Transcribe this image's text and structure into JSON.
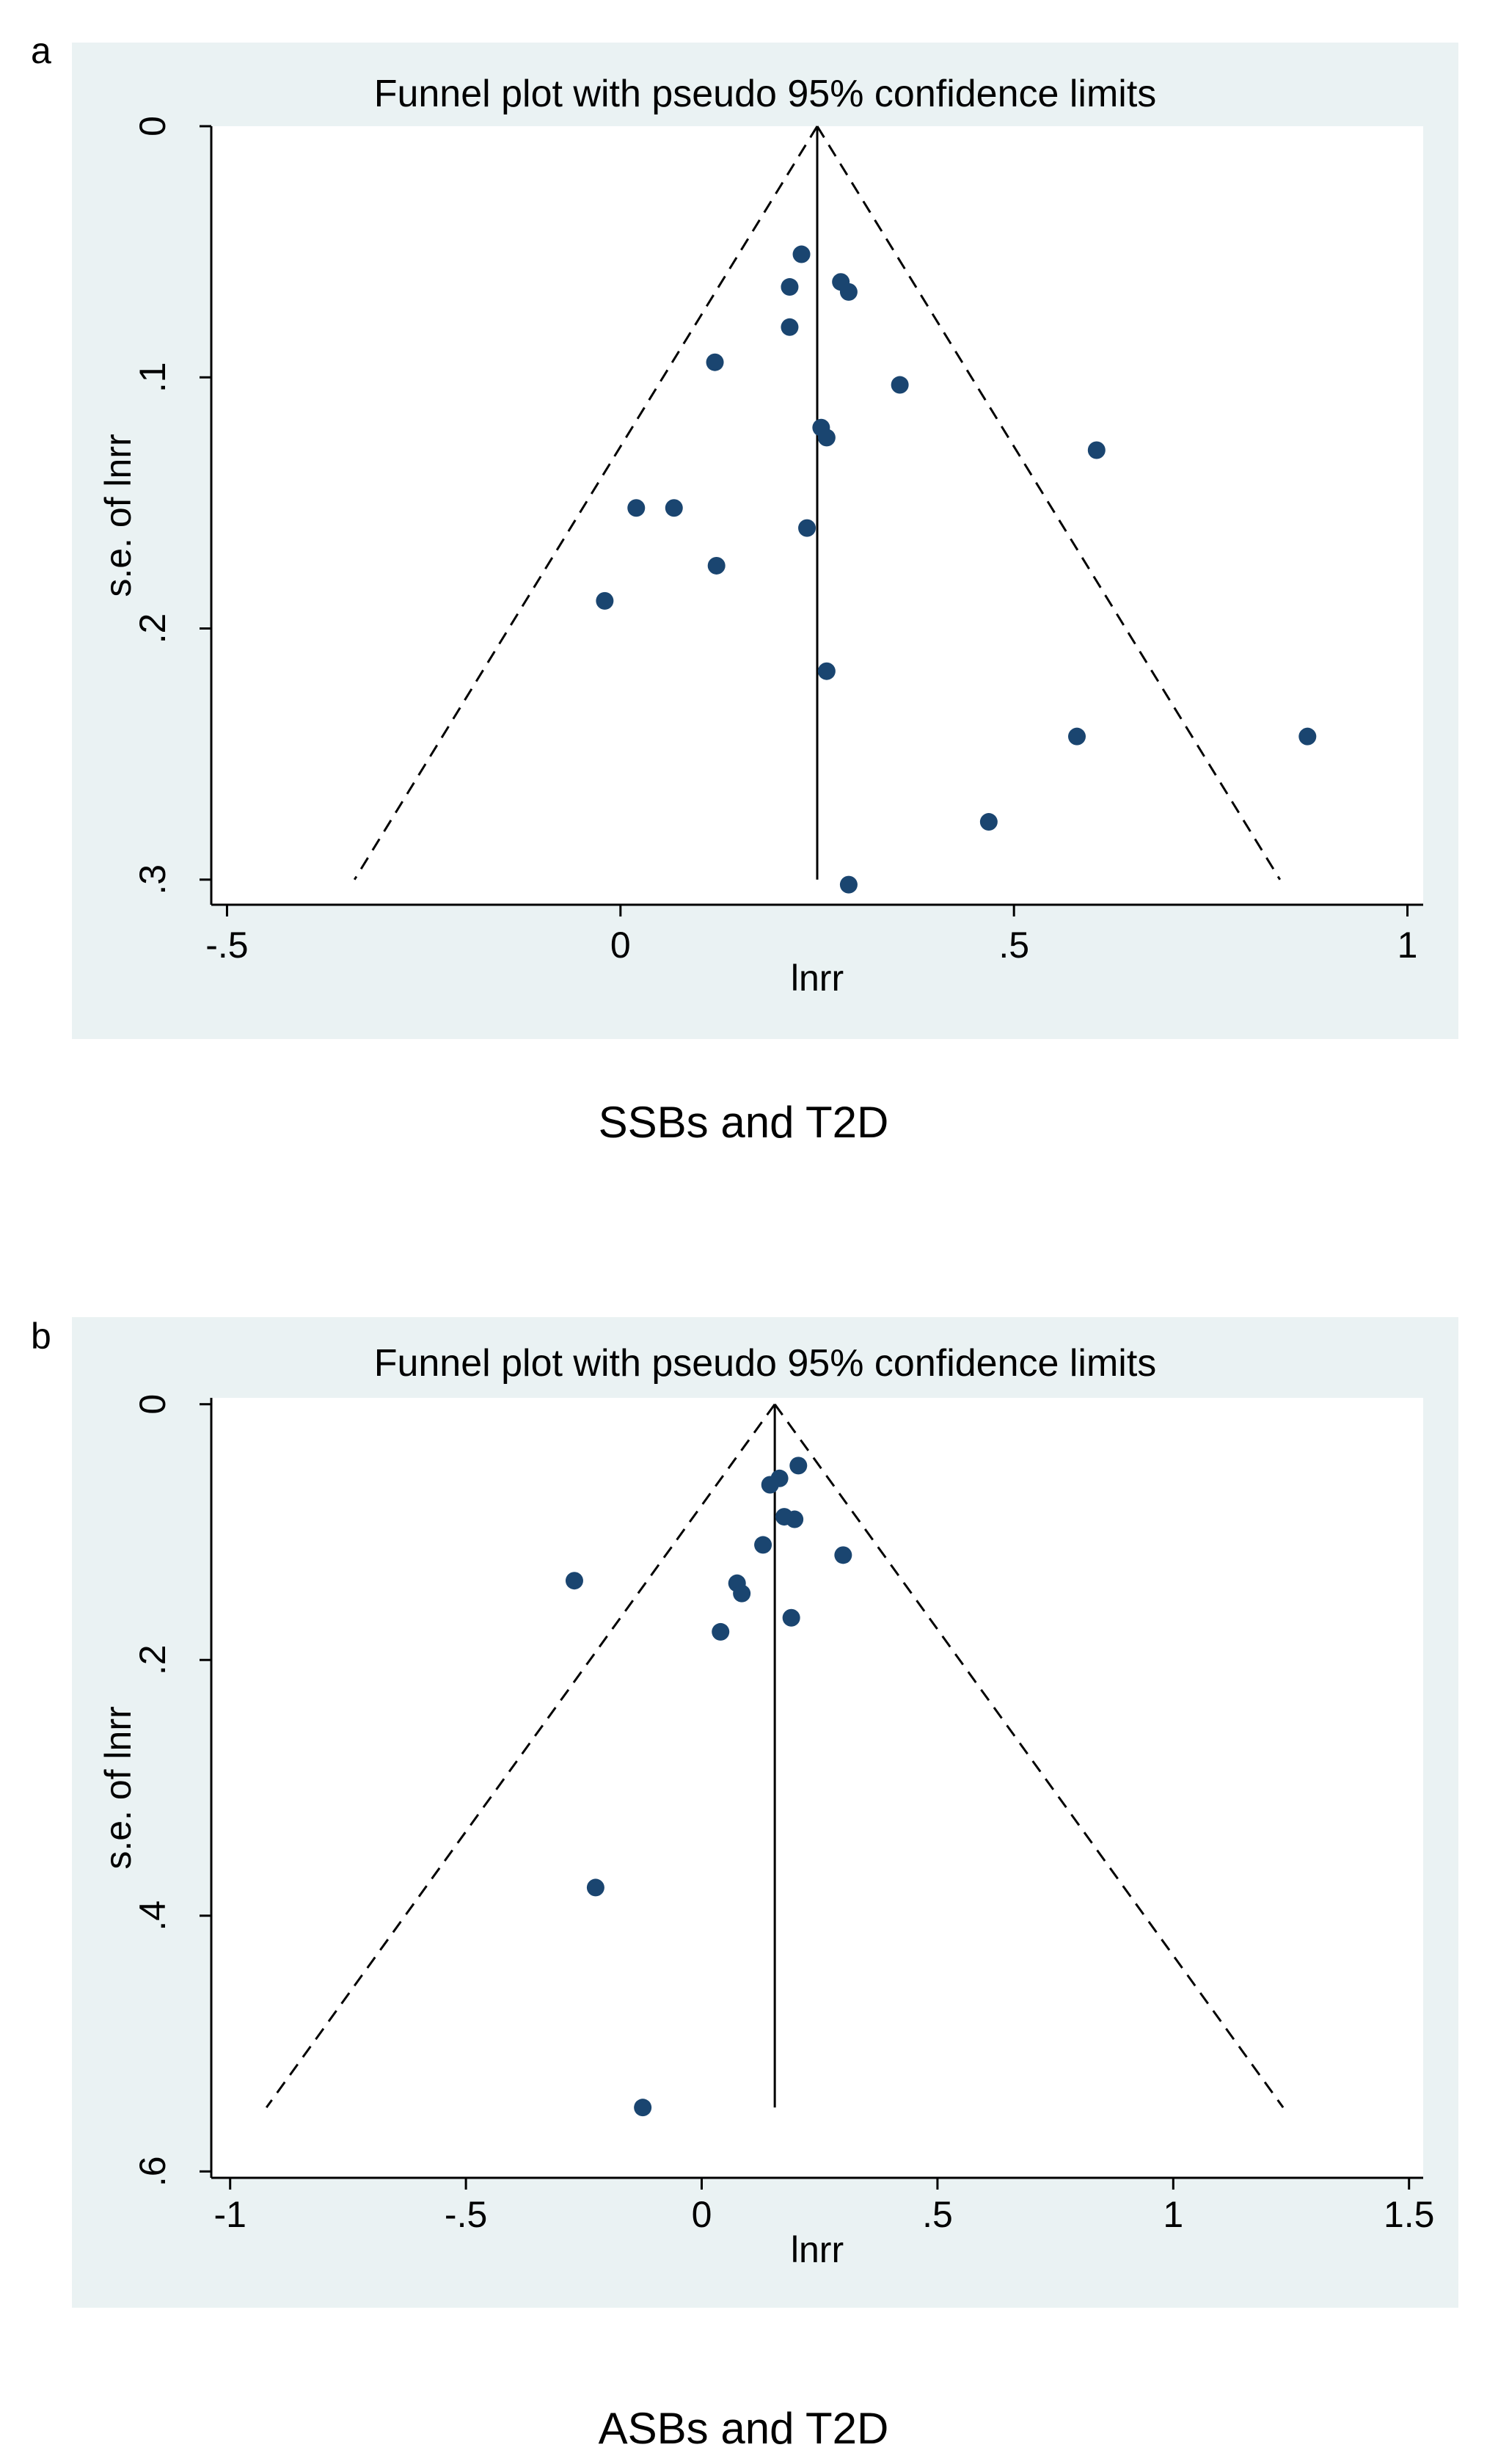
{
  "panels": [
    {
      "letter": "a",
      "caption": "SSBs and T2D",
      "chart_data": {
        "type": "scatter",
        "title": "Funnel plot with pseudo 95% confidence limits",
        "xlabel": "lnrr",
        "ylabel": "s.e. of lnrr",
        "xlim": [
          -0.52,
          1.02
        ],
        "ylim": [
          0,
          0.31
        ],
        "y_reversed": true,
        "xticks": [
          -0.5,
          0,
          0.5,
          1
        ],
        "xtick_labels": [
          "-.5",
          "0",
          ".5",
          "1"
        ],
        "yticks": [
          0,
          0.1,
          0.2,
          0.3
        ],
        "ytick_labels": [
          "0",
          ".1",
          ".2",
          ".3"
        ],
        "grid": false,
        "pooled_estimate": 0.25,
        "funnel_se_max": 0.3,
        "points": [
          {
            "x": 0.23,
            "y": 0.051
          },
          {
            "x": 0.215,
            "y": 0.064
          },
          {
            "x": 0.28,
            "y": 0.062
          },
          {
            "x": 0.29,
            "y": 0.066
          },
          {
            "x": 0.215,
            "y": 0.08
          },
          {
            "x": 0.12,
            "y": 0.094
          },
          {
            "x": 0.355,
            "y": 0.103
          },
          {
            "x": 0.255,
            "y": 0.12
          },
          {
            "x": 0.262,
            "y": 0.124
          },
          {
            "x": 0.605,
            "y": 0.129
          },
          {
            "x": 0.02,
            "y": 0.152
          },
          {
            "x": 0.068,
            "y": 0.152
          },
          {
            "x": 0.237,
            "y": 0.16
          },
          {
            "x": 0.122,
            "y": 0.175
          },
          {
            "x": -0.02,
            "y": 0.189
          },
          {
            "x": 0.262,
            "y": 0.217
          },
          {
            "x": 0.58,
            "y": 0.243
          },
          {
            "x": 0.873,
            "y": 0.243
          },
          {
            "x": 0.468,
            "y": 0.277
          },
          {
            "x": 0.29,
            "y": 0.302
          }
        ]
      }
    },
    {
      "letter": "b",
      "caption": "ASBs and T2D",
      "chart_data": {
        "type": "scatter",
        "title": "Funnel plot with pseudo 95% confidence limits",
        "xlabel": "lnrr",
        "ylabel": "s.e. of lnrr",
        "xlim": [
          -1.04,
          1.53
        ],
        "ylim": [
          -0.005,
          0.605
        ],
        "y_reversed": true,
        "xticks": [
          -1,
          -0.5,
          0,
          0.5,
          1,
          1.5
        ],
        "xtick_labels": [
          "-1",
          "-.5",
          "0",
          ".5",
          "1",
          "1.5"
        ],
        "yticks": [
          0,
          0.2,
          0.4,
          0.6
        ],
        "ytick_labels": [
          "0",
          ".2",
          ".4",
          ".6"
        ],
        "grid": false,
        "pooled_estimate": 0.155,
        "funnel_se_max": 0.55,
        "points": [
          {
            "x": 0.205,
            "y": 0.048
          },
          {
            "x": 0.165,
            "y": 0.058
          },
          {
            "x": 0.145,
            "y": 0.063
          },
          {
            "x": 0.175,
            "y": 0.088
          },
          {
            "x": 0.197,
            "y": 0.09
          },
          {
            "x": 0.13,
            "y": 0.11
          },
          {
            "x": 0.3,
            "y": 0.118
          },
          {
            "x": -0.27,
            "y": 0.138
          },
          {
            "x": 0.075,
            "y": 0.14
          },
          {
            "x": 0.085,
            "y": 0.148
          },
          {
            "x": 0.19,
            "y": 0.167
          },
          {
            "x": 0.04,
            "y": 0.178
          },
          {
            "x": -0.225,
            "y": 0.378
          },
          {
            "x": -0.125,
            "y": 0.55
          }
        ]
      }
    }
  ]
}
